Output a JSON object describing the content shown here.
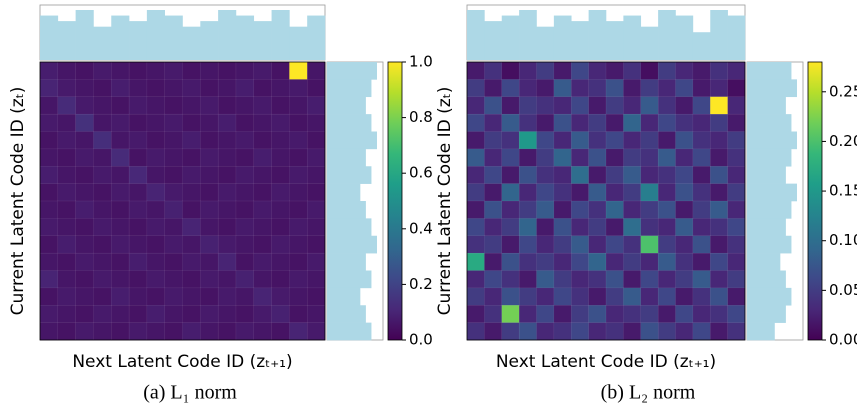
{
  "chart_data": [
    {
      "type": "heatmap",
      "caption": "(a) L₁ norm",
      "x_label": "Next Latent Code ID (zₜ₊₁)",
      "y_label": "Current Latent Code ID (zₜ)",
      "zlim": [
        0,
        1
      ],
      "zticks": [
        {
          "value": 0,
          "label": "0.0"
        },
        {
          "value": 0.2,
          "label": "0.2"
        },
        {
          "value": 0.4,
          "label": "0.4"
        },
        {
          "value": 0.6,
          "label": "0.6"
        },
        {
          "value": 0.8,
          "label": "0.8"
        },
        {
          "value": 1,
          "label": "1.0"
        }
      ],
      "hist_color": "#add8e6",
      "top_hist": [
        8,
        7,
        9,
        6,
        8,
        7,
        9,
        8,
        6,
        7,
        9,
        8,
        7,
        9,
        6,
        8
      ],
      "right_hist": [
        9,
        8,
        7,
        8,
        9,
        7,
        8,
        6,
        7,
        8,
        9,
        7,
        8,
        6,
        7,
        8
      ],
      "values": [
        [
          0.08,
          0.06,
          0.05,
          0.07,
          0.06,
          0.05,
          0.06,
          0.07,
          0.05,
          0.06,
          0.05,
          0.06,
          0.07,
          0.05,
          1.0,
          0.06
        ],
        [
          0.1,
          0.07,
          0.06,
          0.05,
          0.08,
          0.06,
          0.05,
          0.06,
          0.07,
          0.05,
          0.06,
          0.08,
          0.05,
          0.06,
          0.07,
          0.05
        ],
        [
          0.06,
          0.12,
          0.07,
          0.06,
          0.05,
          0.07,
          0.06,
          0.05,
          0.06,
          0.07,
          0.05,
          0.06,
          0.07,
          0.05,
          0.06,
          0.08
        ],
        [
          0.07,
          0.06,
          0.14,
          0.06,
          0.07,
          0.05,
          0.06,
          0.07,
          0.05,
          0.06,
          0.08,
          0.05,
          0.06,
          0.07,
          0.05,
          0.06
        ],
        [
          0.05,
          0.07,
          0.06,
          0.13,
          0.06,
          0.07,
          0.05,
          0.06,
          0.08,
          0.05,
          0.06,
          0.07,
          0.05,
          0.06,
          0.07,
          0.05
        ],
        [
          0.06,
          0.05,
          0.07,
          0.06,
          0.12,
          0.05,
          0.07,
          0.06,
          0.05,
          0.07,
          0.06,
          0.05,
          0.08,
          0.06,
          0.05,
          0.07
        ],
        [
          0.08,
          0.06,
          0.05,
          0.07,
          0.06,
          0.11,
          0.06,
          0.05,
          0.07,
          0.06,
          0.05,
          0.07,
          0.06,
          0.05,
          0.07,
          0.06
        ],
        [
          0.05,
          0.07,
          0.06,
          0.05,
          0.07,
          0.06,
          0.1,
          0.07,
          0.06,
          0.05,
          0.07,
          0.06,
          0.05,
          0.07,
          0.06,
          0.05
        ],
        [
          0.06,
          0.05,
          0.08,
          0.06,
          0.05,
          0.07,
          0.06,
          0.09,
          0.05,
          0.07,
          0.06,
          0.05,
          0.07,
          0.06,
          0.05,
          0.07
        ],
        [
          0.07,
          0.06,
          0.05,
          0.07,
          0.06,
          0.05,
          0.07,
          0.06,
          0.1,
          0.06,
          0.05,
          0.07,
          0.06,
          0.05,
          0.07,
          0.06
        ],
        [
          0.05,
          0.08,
          0.06,
          0.05,
          0.07,
          0.06,
          0.05,
          0.07,
          0.06,
          0.09,
          0.07,
          0.06,
          0.05,
          0.07,
          0.06,
          0.05
        ],
        [
          0.06,
          0.05,
          0.07,
          0.06,
          0.05,
          0.08,
          0.06,
          0.05,
          0.07,
          0.06,
          0.1,
          0.05,
          0.07,
          0.06,
          0.05,
          0.07
        ],
        [
          0.1,
          0.06,
          0.05,
          0.07,
          0.06,
          0.05,
          0.07,
          0.06,
          0.05,
          0.07,
          0.06,
          0.09,
          0.06,
          0.05,
          0.07,
          0.06
        ],
        [
          0.05,
          0.07,
          0.06,
          0.05,
          0.08,
          0.06,
          0.05,
          0.07,
          0.06,
          0.05,
          0.07,
          0.06,
          0.1,
          0.07,
          0.06,
          0.05
        ],
        [
          0.07,
          0.06,
          0.05,
          0.07,
          0.06,
          0.05,
          0.08,
          0.06,
          0.05,
          0.07,
          0.06,
          0.05,
          0.07,
          0.09,
          0.05,
          0.06
        ],
        [
          0.06,
          0.05,
          0.07,
          0.06,
          0.05,
          0.07,
          0.06,
          0.05,
          0.08,
          0.06,
          0.05,
          0.07,
          0.06,
          0.05,
          0.1,
          0.07
        ]
      ]
    },
    {
      "type": "heatmap",
      "caption": "(b) L₂ norm",
      "x_label": "Next Latent Code ID (zₜ₊₁)",
      "y_label": "Current Latent Code ID (zₜ)",
      "zlim": [
        0,
        0.28
      ],
      "zticks": [
        {
          "value": 0,
          "label": "0.00"
        },
        {
          "value": 0.05,
          "label": "0.05"
        },
        {
          "value": 0.1,
          "label": "0.10"
        },
        {
          "value": 0.15,
          "label": "0.15"
        },
        {
          "value": 0.2,
          "label": "0.20"
        },
        {
          "value": 0.25,
          "label": "0.25"
        }
      ],
      "hist_color": "#add8e6",
      "top_hist": [
        9,
        7,
        8,
        9,
        6,
        8,
        7,
        9,
        7,
        8,
        6,
        9,
        8,
        5,
        9,
        8
      ],
      "right_hist": [
        8,
        9,
        7,
        8,
        9,
        8,
        7,
        9,
        8,
        7,
        8,
        6,
        7,
        8,
        7,
        5
      ],
      "values": [
        [
          0.02,
          0.04,
          0.01,
          0.03,
          0.05,
          0.02,
          0.06,
          0.03,
          0.02,
          0.04,
          0.01,
          0.05,
          0.03,
          0.02,
          0.04,
          0.03
        ],
        [
          0.05,
          0.02,
          0.06,
          0.03,
          0.02,
          0.08,
          0.03,
          0.04,
          0.07,
          0.02,
          0.05,
          0.03,
          0.06,
          0.02,
          0.03,
          0.01
        ],
        [
          0.03,
          0.07,
          0.02,
          0.05,
          0.04,
          0.03,
          0.06,
          0.02,
          0.05,
          0.03,
          0.08,
          0.04,
          0.02,
          0.06,
          0.28,
          0.03
        ],
        [
          0.06,
          0.03,
          0.08,
          0.04,
          0.02,
          0.07,
          0.03,
          0.05,
          0.02,
          0.09,
          0.03,
          0.06,
          0.04,
          0.03,
          0.05,
          0.02
        ],
        [
          0.02,
          0.05,
          0.04,
          0.15,
          0.06,
          0.03,
          0.08,
          0.04,
          0.06,
          0.03,
          0.05,
          0.02,
          0.07,
          0.04,
          0.03,
          0.05
        ],
        [
          0.08,
          0.03,
          0.06,
          0.02,
          0.05,
          0.09,
          0.03,
          0.07,
          0.02,
          0.05,
          0.04,
          0.08,
          0.03,
          0.06,
          0.02,
          0.04
        ],
        [
          0.03,
          0.06,
          0.02,
          0.07,
          0.04,
          0.03,
          0.1,
          0.02,
          0.05,
          0.08,
          0.03,
          0.04,
          0.06,
          0.02,
          0.07,
          0.03
        ],
        [
          0.05,
          0.02,
          0.09,
          0.03,
          0.06,
          0.04,
          0.02,
          0.08,
          0.03,
          0.05,
          0.12,
          0.03,
          0.07,
          0.04,
          0.02,
          0.05
        ],
        [
          0.02,
          0.07,
          0.03,
          0.05,
          0.08,
          0.02,
          0.06,
          0.04,
          0.09,
          0.03,
          0.05,
          0.07,
          0.02,
          0.05,
          0.08,
          0.03
        ],
        [
          0.06,
          0.03,
          0.05,
          0.09,
          0.02,
          0.07,
          0.03,
          0.05,
          0.02,
          0.1,
          0.04,
          0.03,
          0.08,
          0.03,
          0.04,
          0.06
        ],
        [
          0.04,
          0.05,
          0.02,
          0.06,
          0.03,
          0.05,
          0.08,
          0.03,
          0.06,
          0.04,
          0.2,
          0.05,
          0.03,
          0.07,
          0.02,
          0.04
        ],
        [
          0.17,
          0.02,
          0.07,
          0.04,
          0.05,
          0.03,
          0.06,
          0.09,
          0.03,
          0.05,
          0.03,
          0.08,
          0.04,
          0.02,
          0.06,
          0.03
        ],
        [
          0.03,
          0.06,
          0.04,
          0.02,
          0.08,
          0.05,
          0.03,
          0.04,
          0.07,
          0.02,
          0.06,
          0.03,
          0.05,
          0.08,
          0.03,
          0.05
        ],
        [
          0.05,
          0.03,
          0.07,
          0.05,
          0.03,
          0.06,
          0.04,
          0.02,
          0.05,
          0.08,
          0.03,
          0.06,
          0.02,
          0.04,
          0.07,
          0.02
        ],
        [
          0.02,
          0.04,
          0.22,
          0.03,
          0.06,
          0.02,
          0.05,
          0.07,
          0.03,
          0.04,
          0.05,
          0.02,
          0.06,
          0.03,
          0.04,
          0.06
        ],
        [
          0.04,
          0.02,
          0.05,
          0.07,
          0.03,
          0.04,
          0.06,
          0.03,
          0.04,
          0.02,
          0.07,
          0.05,
          0.03,
          0.06,
          0.02,
          0.04
        ]
      ]
    }
  ]
}
